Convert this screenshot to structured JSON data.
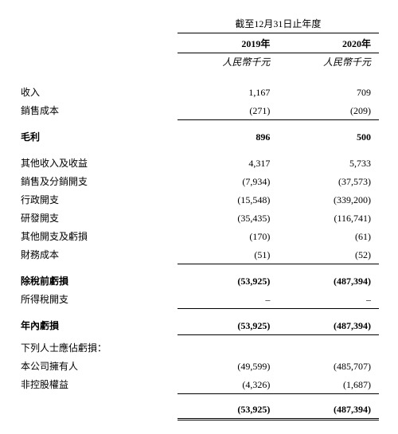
{
  "header": {
    "period_title": "截至12月31日止年度",
    "year1": "2019年",
    "year2": "2020年",
    "unit": "人民幣千元"
  },
  "rows": {
    "revenue": {
      "label": "收入",
      "v1": "1,167",
      "v2": "709"
    },
    "cost_of_sales": {
      "label": "銷售成本",
      "v1": "(271)",
      "v2": "(209)"
    },
    "gross_profit": {
      "label": "毛利",
      "v1": "896",
      "v2": "500"
    },
    "other_income": {
      "label": "其他收入及收益",
      "v1": "4,317",
      "v2": "5,733"
    },
    "selling_dist": {
      "label": "銷售及分銷開支",
      "v1": "(7,934)",
      "v2": "(37,573)"
    },
    "admin_exp": {
      "label": "行政開支",
      "v1": "(15,548)",
      "v2": "(339,200)"
    },
    "rd_exp": {
      "label": "研發開支",
      "v1": "(35,435)",
      "v2": "(116,741)"
    },
    "other_exp": {
      "label": "其他開支及虧損",
      "v1": "(170)",
      "v2": "(61)"
    },
    "finance_cost": {
      "label": "財務成本",
      "v1": "(51)",
      "v2": "(52)"
    },
    "loss_before_tax": {
      "label": "除稅前虧損",
      "v1": "(53,925)",
      "v2": "(487,394)"
    },
    "income_tax": {
      "label": "所得稅開支",
      "v1": "–",
      "v2": "–"
    },
    "loss_for_year": {
      "label": "年內虧損",
      "v1": "(53,925)",
      "v2": "(487,394)"
    },
    "attributable": {
      "label": "下列人士應佔虧損："
    },
    "owners": {
      "label": "本公司擁有人",
      "v1": "(49,599)",
      "v2": "(485,707)"
    },
    "nci": {
      "label": "非控股權益",
      "v1": "(4,326)",
      "v2": "(1,687)"
    },
    "total": {
      "v1": "(53,925)",
      "v2": "(487,394)"
    }
  }
}
